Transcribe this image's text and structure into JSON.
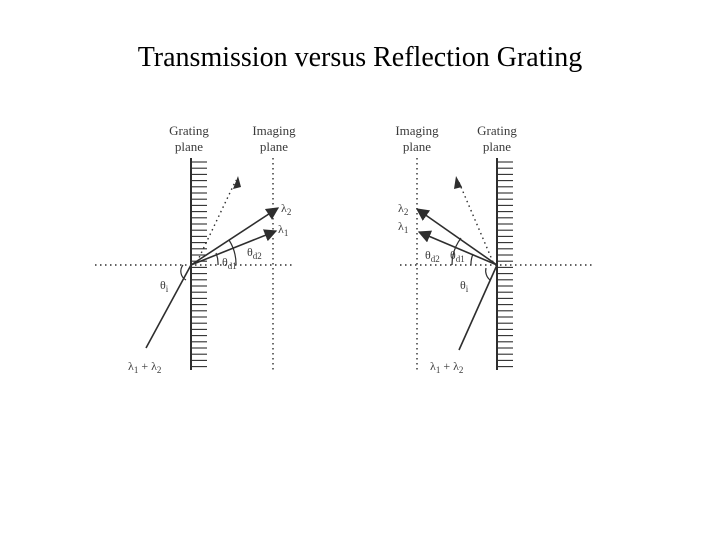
{
  "title": "Transmission versus Reflection Grating",
  "colors": {
    "line": "#2e2e2e",
    "text": "#3a3a3a",
    "background": "#ffffff"
  },
  "transmission": {
    "grating_label": [
      "Grating",
      "plane"
    ],
    "imaging_label": [
      "Imaging",
      "plane"
    ],
    "lambda2": "λ",
    "lambda2_sub": "2",
    "lambda1": "λ",
    "lambda1_sub": "1",
    "theta_i": "θ",
    "theta_i_sub": "i",
    "theta_d1": "θ",
    "theta_d1_sub": "d1",
    "theta_d2": "θ",
    "theta_d2_sub": "d2",
    "incident": {
      "l1": "λ",
      "s1": "1",
      "plus": " + λ",
      "s2": "2"
    }
  },
  "reflection": {
    "imaging_label": [
      "Imaging",
      "plane"
    ],
    "grating_label": [
      "Grating",
      "plane"
    ],
    "lambda2": "λ",
    "lambda2_sub": "2",
    "lambda1": "λ",
    "lambda1_sub": "1",
    "theta_i": "θ",
    "theta_i_sub": "i",
    "theta_d1": "θ",
    "theta_d1_sub": "d1",
    "theta_d2": "θ",
    "theta_d2_sub": "d2",
    "incident": {
      "l1": "λ",
      "s1": "1",
      "plus": " + λ",
      "s2": "2"
    }
  }
}
